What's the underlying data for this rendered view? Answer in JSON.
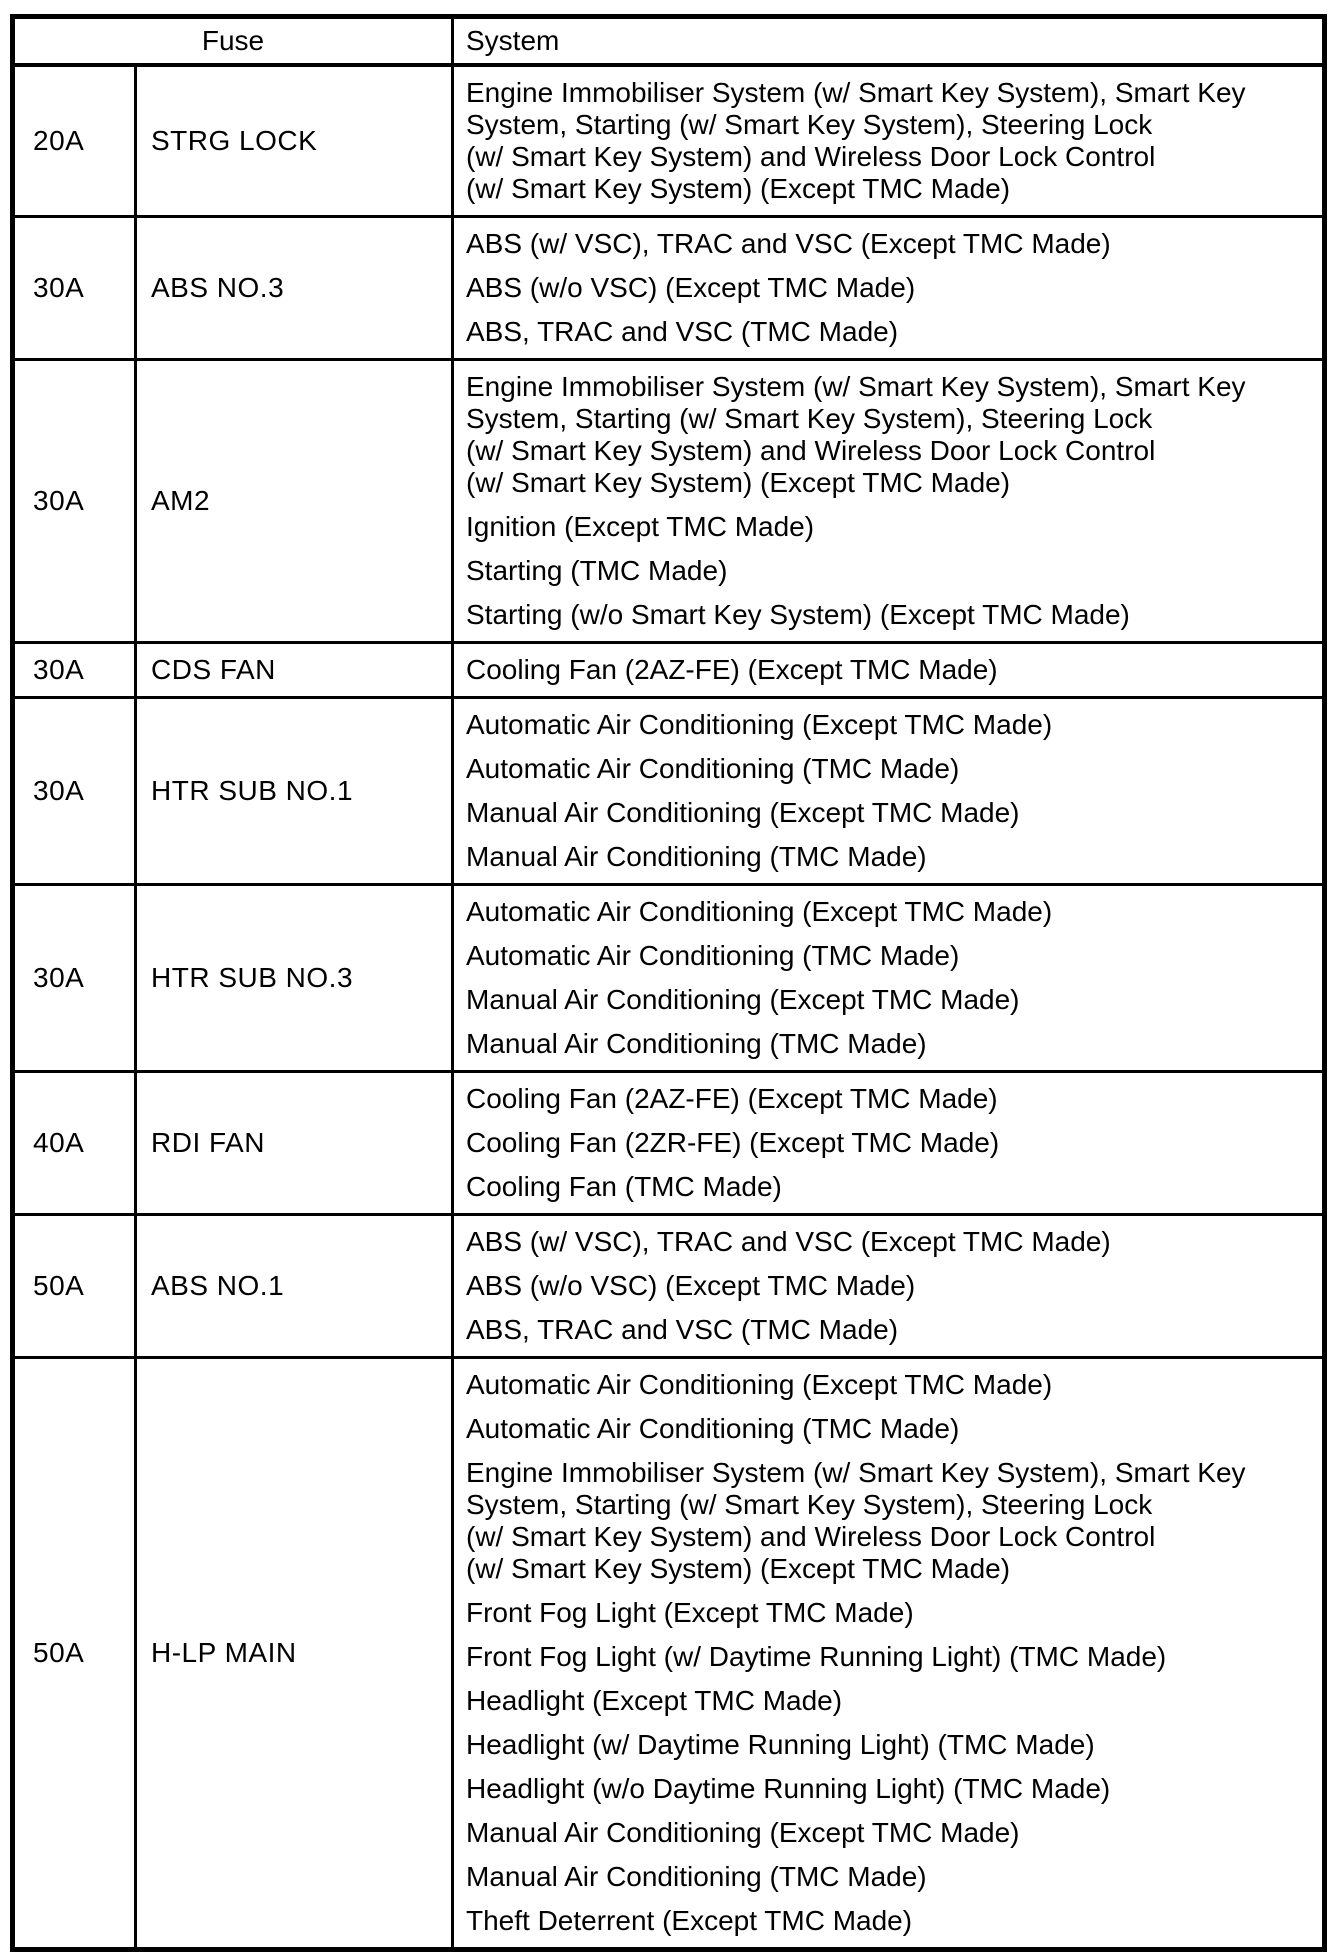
{
  "colors": {
    "text": "#000000",
    "background": "#ffffff",
    "border": "#000000"
  },
  "header": {
    "fuse_label": "Fuse",
    "system_label": "System"
  },
  "rows": [
    {
      "amperage": "20A",
      "name": "STRG LOCK",
      "systems": [
        "Engine Immobiliser System (w/ Smart Key System), Smart Key\nSystem, Starting (w/ Smart Key System), Steering Lock\n(w/ Smart Key System) and Wireless Door Lock Control\n(w/ Smart Key System) (Except TMC Made)"
      ]
    },
    {
      "amperage": "30A",
      "name": "ABS NO.3",
      "systems": [
        "ABS (w/ VSC), TRAC and VSC (Except TMC Made)",
        "ABS (w/o VSC) (Except TMC Made)",
        "ABS, TRAC and VSC (TMC Made)"
      ]
    },
    {
      "amperage": "30A",
      "name": "AM2",
      "systems": [
        "Engine Immobiliser System (w/ Smart Key System), Smart Key\nSystem, Starting (w/ Smart Key System), Steering Lock\n(w/ Smart Key System) and Wireless Door Lock Control\n(w/ Smart Key System) (Except TMC Made)",
        "Ignition (Except TMC Made)",
        "Starting (TMC Made)",
        "Starting (w/o Smart Key System) (Except TMC Made)"
      ]
    },
    {
      "amperage": "30A",
      "name": "CDS FAN",
      "systems": [
        "Cooling Fan (2AZ-FE) (Except TMC Made)"
      ]
    },
    {
      "amperage": "30A",
      "name": "HTR SUB NO.1",
      "systems": [
        "Automatic Air Conditioning (Except TMC Made)",
        "Automatic Air Conditioning (TMC Made)",
        "Manual Air Conditioning (Except TMC Made)",
        "Manual Air Conditioning (TMC Made)"
      ]
    },
    {
      "amperage": "30A",
      "name": "HTR SUB NO.3",
      "systems": [
        "Automatic Air Conditioning (Except TMC Made)",
        "Automatic Air Conditioning (TMC Made)",
        "Manual Air Conditioning (Except TMC Made)",
        "Manual Air Conditioning (TMC Made)"
      ]
    },
    {
      "amperage": "40A",
      "name": "RDI FAN",
      "systems": [
        "Cooling Fan (2AZ-FE) (Except TMC Made)",
        "Cooling Fan (2ZR-FE) (Except TMC Made)",
        "Cooling Fan (TMC Made)"
      ]
    },
    {
      "amperage": "50A",
      "name": "ABS NO.1",
      "systems": [
        "ABS (w/ VSC), TRAC and VSC (Except TMC Made)",
        "ABS (w/o VSC) (Except TMC Made)",
        "ABS, TRAC and VSC (TMC Made)"
      ]
    },
    {
      "amperage": "50A",
      "name": "H-LP MAIN",
      "systems": [
        "Automatic Air Conditioning (Except TMC Made)",
        "Automatic Air Conditioning (TMC Made)",
        "Engine Immobiliser System (w/ Smart Key System), Smart Key\nSystem, Starting (w/ Smart Key System), Steering Lock\n(w/ Smart Key System) and Wireless Door Lock Control\n(w/ Smart Key System) (Except TMC Made)",
        "Front Fog Light (Except TMC Made)",
        "Front Fog Light (w/ Daytime Running Light) (TMC Made)",
        "Headlight (Except TMC Made)",
        "Headlight (w/ Daytime Running Light) (TMC Made)",
        "Headlight (w/o Daytime Running Light) (TMC Made)",
        "Manual Air Conditioning (Except TMC Made)",
        "Manual Air Conditioning (TMC Made)",
        "Theft Deterrent (Except TMC Made)"
      ]
    }
  ]
}
